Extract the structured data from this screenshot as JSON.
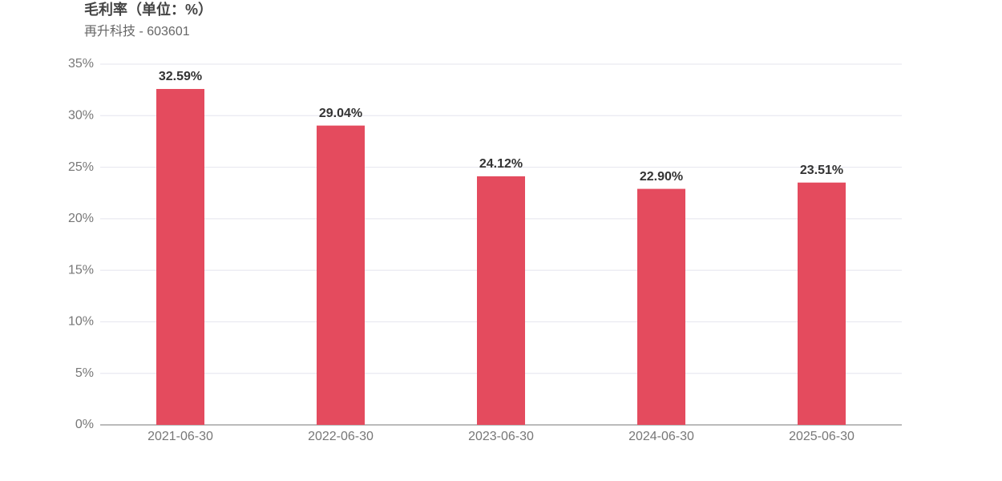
{
  "chart_data": {
    "type": "bar",
    "title": "毛利率（单位：%）",
    "subtitle": "再升科技 - 603601",
    "categories": [
      "2021-06-30",
      "2022-06-30",
      "2023-06-30",
      "2024-06-30",
      "2025-06-30"
    ],
    "values": [
      32.59,
      29.04,
      24.12,
      22.9,
      23.51
    ],
    "value_labels": [
      "32.59%",
      "29.04%",
      "24.12%",
      "22.90%",
      "23.51%"
    ],
    "color": "#e44b5e",
    "ylim": [
      0,
      35
    ],
    "yticks": [
      {
        "value": 0,
        "label": "0%"
      },
      {
        "value": 5,
        "label": "5%"
      },
      {
        "value": 10,
        "label": "10%"
      },
      {
        "value": 15,
        "label": "15%"
      },
      {
        "value": 20,
        "label": "20%"
      },
      {
        "value": 25,
        "label": "25%"
      },
      {
        "value": 30,
        "label": "30%"
      },
      {
        "value": 35,
        "label": "35%"
      }
    ],
    "grid": true
  }
}
